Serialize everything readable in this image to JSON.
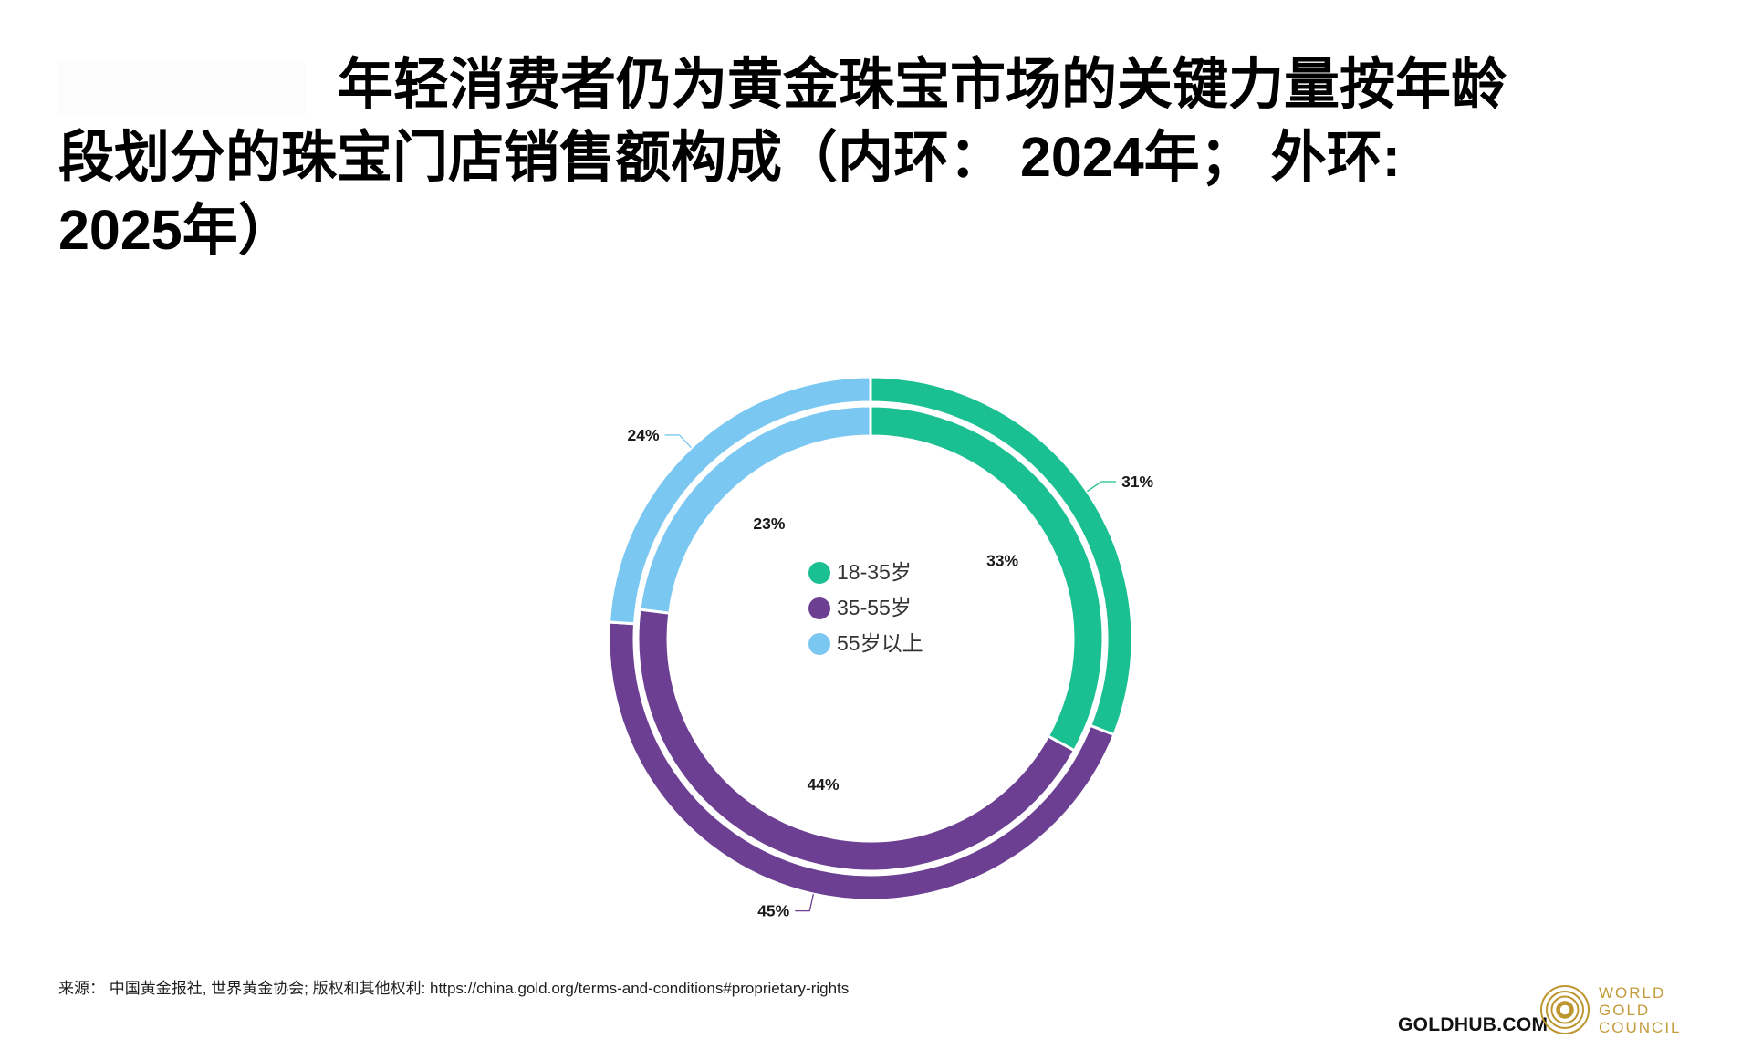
{
  "title": {
    "lines": [
      "年轻消费者仍为黄金珠宝市场的关键力量按年龄",
      "段划分的珠宝门店销售额构成（内环： 2024年； 外环:",
      "2025年）"
    ]
  },
  "chart_data": {
    "type": "pie",
    "subtype": "nested-donut",
    "categories": [
      "18-35岁",
      "35-55岁",
      "55岁以上"
    ],
    "colors": [
      "#1BC092",
      "#6C3F93",
      "#7AC7F2"
    ],
    "series": [
      {
        "name": "2024年（内环）",
        "ring": "inner",
        "values": [
          33,
          44,
          23
        ]
      },
      {
        "name": "2025年（外环）",
        "ring": "outer",
        "values": [
          31,
          45,
          24
        ]
      }
    ],
    "unit": "%",
    "start_angle_deg": 0,
    "direction": "clockwise",
    "legend_position": "inside-center-left",
    "grid": false
  },
  "footer": {
    "source": "来源： 中国黄金报社, 世界黄金协会; 版权和其他权利: https://china.gold.org/terms-and-conditions#proprietary-rights",
    "goldhub": "GOLDHUB.COM",
    "logo": {
      "line1": "WORLD",
      "line2": "GOLD",
      "line3": "COUNCIL",
      "gold_color": "#BE962F"
    }
  }
}
